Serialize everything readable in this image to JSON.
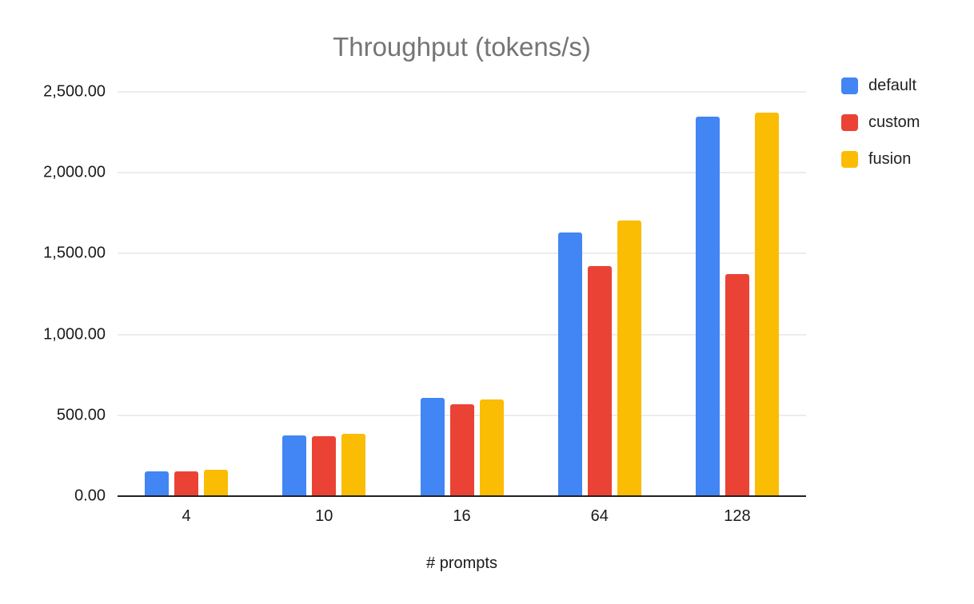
{
  "chart_data": {
    "type": "bar",
    "title": "Throughput (tokens/s)",
    "xlabel": "# prompts",
    "ylabel": "",
    "categories": [
      "4",
      "10",
      "16",
      "64",
      "128"
    ],
    "series": [
      {
        "name": "default",
        "color": "#4285F4",
        "values": [
          155,
          375,
          610,
          1630,
          2345
        ]
      },
      {
        "name": "custom",
        "color": "#EA4335",
        "values": [
          155,
          370,
          570,
          1425,
          1375
        ]
      },
      {
        "name": "fusion",
        "color": "#FBBC04",
        "values": [
          165,
          385,
          600,
          1705,
          2370
        ]
      }
    ],
    "ylim": [
      0,
      2500
    ],
    "yticks": [
      {
        "value": 0,
        "label": "0.00"
      },
      {
        "value": 500,
        "label": "500.00"
      },
      {
        "value": 1000,
        "label": "1,000.00"
      },
      {
        "value": 1500,
        "label": "1,500.00"
      },
      {
        "value": 2000,
        "label": "2,000.00"
      },
      {
        "value": 2500,
        "label": "2,500.00"
      }
    ],
    "grid": true,
    "legend_position": "top-right",
    "background": "#ffffff"
  }
}
